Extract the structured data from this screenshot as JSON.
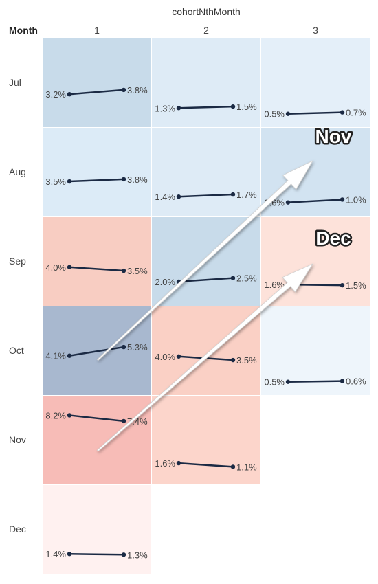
{
  "chart_data": {
    "type": "line",
    "title": "cohortNthMonth",
    "row_header": "Month",
    "columns": [
      "1",
      "2",
      "3"
    ],
    "rows": [
      "Jul",
      "Aug",
      "Sep",
      "Oct",
      "Nov",
      "Dec"
    ],
    "cells": [
      {
        "row": "Jul",
        "col": "1",
        "start": 3.2,
        "end": 3.8,
        "start_label": "3.2%",
        "end_label": "3.8%",
        "fill": "#c8dbea"
      },
      {
        "row": "Jul",
        "col": "2",
        "start": 1.3,
        "end": 1.5,
        "start_label": "1.3%",
        "end_label": "1.5%",
        "fill": "#deebf6"
      },
      {
        "row": "Jul",
        "col": "3",
        "start": 0.5,
        "end": 0.7,
        "start_label": "0.5%",
        "end_label": "0.7%",
        "fill": "#e4eff9"
      },
      {
        "row": "Aug",
        "col": "1",
        "start": 3.5,
        "end": 3.8,
        "start_label": "3.5%",
        "end_label": "3.8%",
        "fill": "#dcebf7"
      },
      {
        "row": "Aug",
        "col": "2",
        "start": 1.4,
        "end": 1.7,
        "start_label": "1.4%",
        "end_label": "1.7%",
        "fill": "#deebf6"
      },
      {
        "row": "Aug",
        "col": "3",
        "start": 0.6,
        "end": 1.0,
        "start_label": "0.6%",
        "end_label": "1.0%",
        "fill": "#d2e3f1"
      },
      {
        "row": "Sep",
        "col": "1",
        "start": 4.0,
        "end": 3.5,
        "start_label": "4.0%",
        "end_label": "3.5%",
        "fill": "#f8cdc2"
      },
      {
        "row": "Sep",
        "col": "2",
        "start": 2.0,
        "end": 2.5,
        "start_label": "2.0%",
        "end_label": "2.5%",
        "fill": "#c8dbea"
      },
      {
        "row": "Sep",
        "col": "3",
        "start": 1.6,
        "end": 1.5,
        "start_label": "1.6%",
        "end_label": "1.5%",
        "fill": "#fde2da"
      },
      {
        "row": "Oct",
        "col": "1",
        "start": 4.1,
        "end": 5.3,
        "start_label": "4.1%",
        "end_label": "5.3%",
        "fill": "#a8b8cf"
      },
      {
        "row": "Oct",
        "col": "2",
        "start": 4.0,
        "end": 3.5,
        "start_label": "4.0%",
        "end_label": "3.5%",
        "fill": "#fad0c5"
      },
      {
        "row": "Oct",
        "col": "3",
        "start": 0.5,
        "end": 0.6,
        "start_label": "0.5%",
        "end_label": "0.6%",
        "fill": "#eef5fb"
      },
      {
        "row": "Nov",
        "col": "1",
        "start": 8.2,
        "end": 7.4,
        "start_label": "8.2%",
        "end_label": "7.4%",
        "fill": "#f7bcb7"
      },
      {
        "row": "Nov",
        "col": "2",
        "start": 1.6,
        "end": 1.1,
        "start_label": "1.6%",
        "end_label": "1.1%",
        "fill": "#fcd5cb"
      },
      {
        "row": "Dec",
        "col": "1",
        "start": 1.4,
        "end": 1.3,
        "start_label": "1.4%",
        "end_label": "1.3%",
        "fill": "#fff1f0"
      }
    ],
    "annotations": [
      {
        "text": "Nov",
        "from": {
          "row": "Oct",
          "col": "1"
        },
        "to": {
          "row": "Aug",
          "col": "3"
        }
      },
      {
        "text": "Dec",
        "from": {
          "row": "Nov",
          "col": "1"
        },
        "to": {
          "row": "Sep",
          "col": "3"
        }
      }
    ],
    "grid": false,
    "legend": "none",
    "colors": {
      "line": "#1b2a44",
      "label": "#444444",
      "annotation_fill": "#ffffff",
      "annotation_stroke": "#222222"
    }
  }
}
